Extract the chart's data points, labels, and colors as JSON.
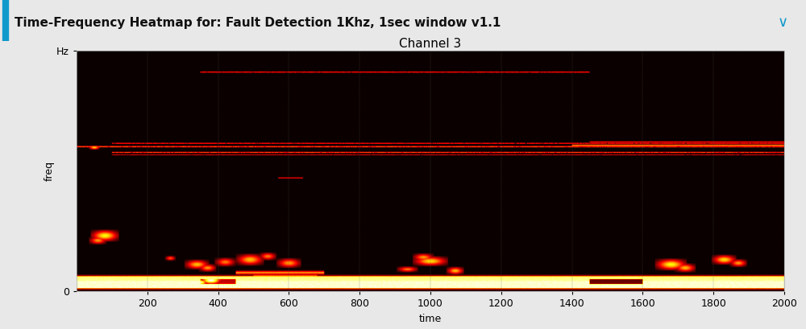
{
  "title": "Channel 3",
  "xlabel": "time",
  "ylabel": "freq",
  "x_min": 0,
  "x_max": 2000,
  "y_min": 0,
  "y_max": 500,
  "xticks": [
    200,
    400,
    600,
    800,
    1000,
    1200,
    1400,
    1600,
    1800,
    2000
  ],
  "colormap": "hot",
  "n_time": 2000,
  "n_freq": 500,
  "header_text": "Time-Frequency Heatmap for: Fault Detection 1Khz, 1sec window v1.1",
  "header_fontsize": 11,
  "title_fontsize": 11,
  "axis_fontsize": 9,
  "label_fontsize": 9,
  "seed": 42,
  "fig_bg": "#e8e8e8",
  "plot_bg": "#1a1a1a"
}
